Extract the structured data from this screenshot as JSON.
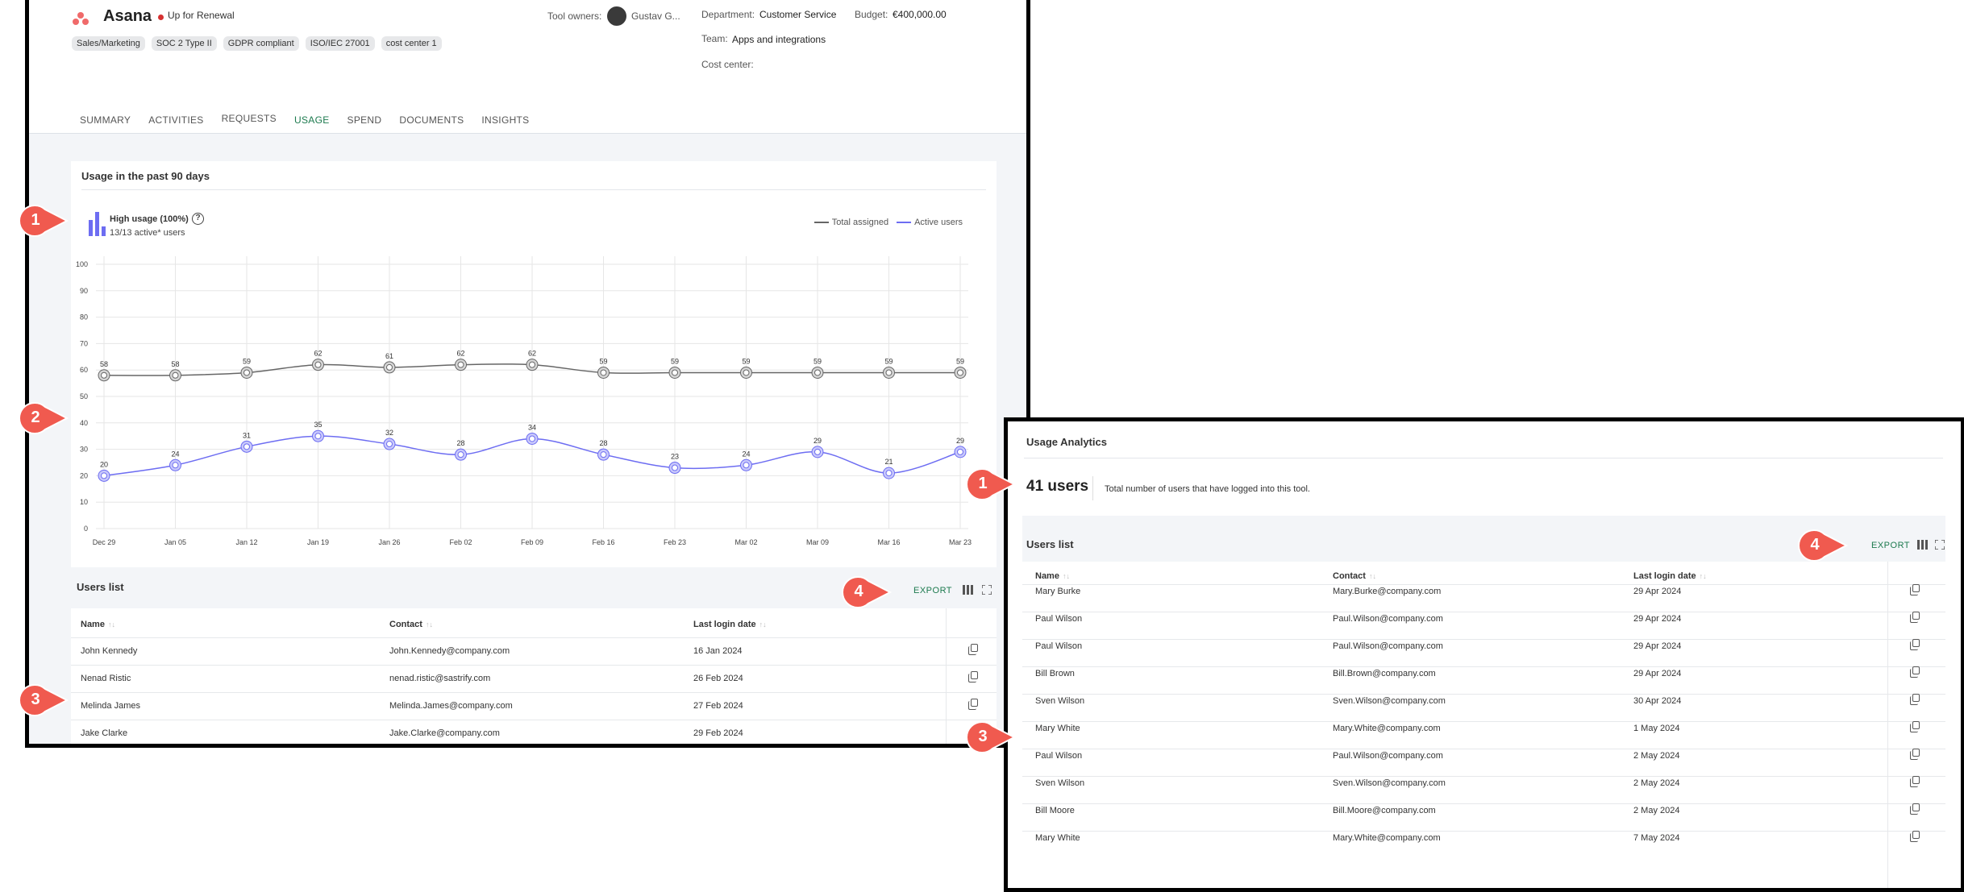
{
  "app": {
    "title": "Asana",
    "status": "Up for Renewal",
    "tags": [
      "Sales/Marketing",
      "SOC 2 Type II",
      "GDPR compliant",
      "ISO/IEC 27001",
      "cost center 1"
    ],
    "tool_owners_label": "Tool owners:",
    "tool_owners_value": "Gustav G...",
    "department_label": "Department:",
    "department_value": "Customer Service",
    "budget_label": "Budget:",
    "budget_value": "€400,000.00",
    "team_label": "Team:",
    "team_value": "Apps and integrations",
    "cost_center_label": "Cost center:"
  },
  "tabs": [
    "SUMMARY",
    "ACTIVITIES",
    "REQUESTS",
    "USAGE",
    "SPEND",
    "DOCUMENTS",
    "INSIGHTS"
  ],
  "active_tab": "USAGE",
  "usage_card": {
    "title": "Usage in the past 90 days",
    "level": "High usage (100%)",
    "active": "13/13 active* users",
    "help": "?"
  },
  "chart_data": {
    "type": "line",
    "x": [
      "Dec 29",
      "Jan 05",
      "Jan 12",
      "Jan 19",
      "Jan 26",
      "Feb 02",
      "Feb 09",
      "Feb 16",
      "Feb 23",
      "Mar 02",
      "Mar 09",
      "Mar 16",
      "Mar 23"
    ],
    "series": [
      {
        "name": "Total assigned",
        "values": [
          58,
          58,
          59,
          62,
          61,
          62,
          62,
          59,
          59,
          59,
          59,
          59,
          59
        ],
        "color": "#666666"
      },
      {
        "name": "Active users",
        "values": [
          20,
          24,
          31,
          35,
          32,
          28,
          34,
          28,
          23,
          24,
          29,
          21,
          29
        ],
        "color": "#6d6df2"
      }
    ],
    "ylim": [
      0,
      100
    ],
    "yticks": [
      0,
      10,
      20,
      30,
      40,
      50,
      60,
      70,
      80,
      90,
      100
    ],
    "grid": true,
    "legend": "top-right"
  },
  "users_left": {
    "title": "Users list",
    "export": "EXPORT",
    "columns": [
      "Name",
      "Contact",
      "Last login date"
    ],
    "rows": [
      [
        "John Kennedy",
        "John.Kennedy@company.com",
        "16 Jan 2024"
      ],
      [
        "Nenad Ristic",
        "nenad.ristic@sastrify.com",
        "26 Feb 2024"
      ],
      [
        "Melinda James",
        "Melinda.James@company.com",
        "27 Feb 2024"
      ],
      [
        "Jake Clarke",
        "Jake.Clarke@company.com",
        "29 Feb 2024"
      ]
    ]
  },
  "usage_analytics": {
    "title": "Usage Analytics",
    "count": "41 users",
    "description": "Total number of users that have logged into this tool."
  },
  "users_right": {
    "title": "Users list",
    "export": "EXPORT",
    "columns": [
      "Name",
      "Contact",
      "Last login date"
    ],
    "rows": [
      [
        "Mary Burke",
        "Mary.Burke@company.com",
        "29 Apr 2024"
      ],
      [
        "Paul Wilson",
        "Paul.Wilson@company.com",
        "29 Apr 2024"
      ],
      [
        "Paul Wilson",
        "Paul.Wilson@company.com",
        "29 Apr 2024"
      ],
      [
        "Bill Brown",
        "Bill.Brown@company.com",
        "29 Apr 2024"
      ],
      [
        "Sven Wilson",
        "Sven.Wilson@company.com",
        "30 Apr 2024"
      ],
      [
        "Mary White",
        "Mary.White@company.com",
        "1 May 2024"
      ],
      [
        "Paul Wilson",
        "Paul.Wilson@company.com",
        "2 May 2024"
      ],
      [
        "Sven Wilson",
        "Sven.Wilson@company.com",
        "2 May 2024"
      ],
      [
        "Bill Moore",
        "Bill.Moore@company.com",
        "2 May 2024"
      ],
      [
        "Mary White",
        "Mary.White@company.com",
        "7 May 2024"
      ]
    ]
  },
  "callouts": [
    "1",
    "2",
    "3",
    "4",
    "1",
    "3",
    "4"
  ],
  "colors": {
    "accent": "#1c7a4e",
    "callout": "#f05a4f",
    "active_line": "#6d6df2",
    "total_line": "#666666"
  }
}
